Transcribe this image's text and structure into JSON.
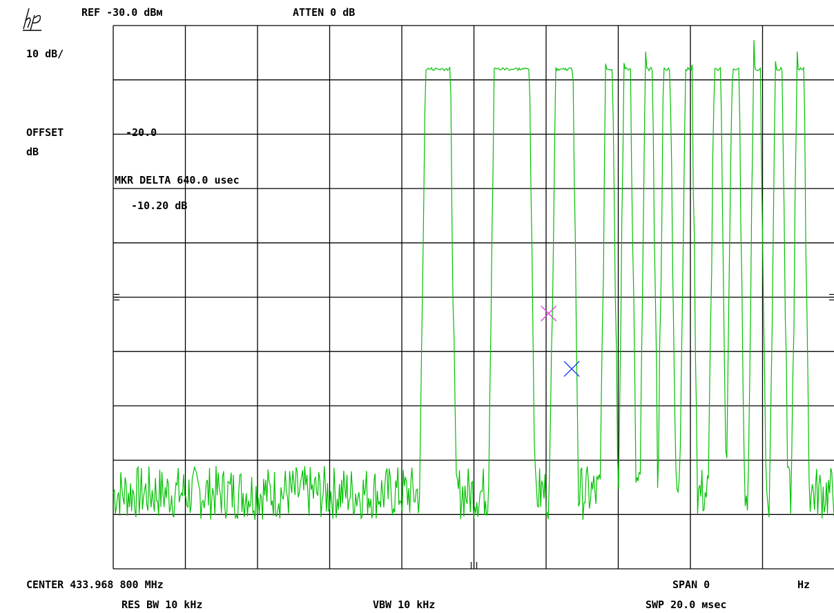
{
  "header": {
    "ref_level": "REF -30.0 dBм",
    "attenuation": "ATTEN 0 dB"
  },
  "left_panel": {
    "scale": "10 dB/",
    "offset_line1": "OFFSET",
    "offset_line2": "dB",
    "offset_value": "-20.0"
  },
  "marker": {
    "delta_label": "MKR DELTA 640.0 usec",
    "delta_amplitude": "-10.20 dB"
  },
  "footer": {
    "center": "CENTER 433.968 800 MHz",
    "span": "SPAN 0",
    "span_unit": "Hz",
    "res_bw": "RES BW 10 kHz",
    "vbw": "VBW 10 kHz",
    "sweep": "SWP 20.0 мsec"
  },
  "colors": {
    "trace": "#00c000",
    "grid": "#000000",
    "marker_reference": "#e040e0",
    "marker_active": "#2040ff"
  },
  "chart_data": {
    "type": "line",
    "x_unit": "msec",
    "y_unit": "dBm",
    "xlim": [
      0,
      20
    ],
    "ylim": [
      -130,
      -30
    ],
    "grid": true,
    "reference_level": -30,
    "scale_per_div": 10,
    "noise_floor": -117,
    "pulse_top": -38,
    "pulses_msec": [
      [
        8.5,
        9.5
      ],
      [
        10.4,
        11.7
      ],
      [
        12.1,
        12.9
      ],
      [
        13.5,
        14.0
      ],
      [
        14.0,
        14.5
      ],
      [
        14.6,
        15.1
      ],
      [
        15.1,
        15.6
      ],
      [
        15.7,
        16.2
      ],
      [
        16.5,
        17.0
      ],
      [
        17.0,
        17.5
      ],
      [
        17.6,
        18.1
      ],
      [
        18.2,
        18.7
      ],
      [
        18.8,
        19.3
      ]
    ],
    "markers": [
      {
        "name": "reference",
        "x_msec": 12.07,
        "y_dBm": -83
      },
      {
        "name": "active",
        "x_msec": 12.71,
        "y_dBm": -93.2
      }
    ]
  }
}
